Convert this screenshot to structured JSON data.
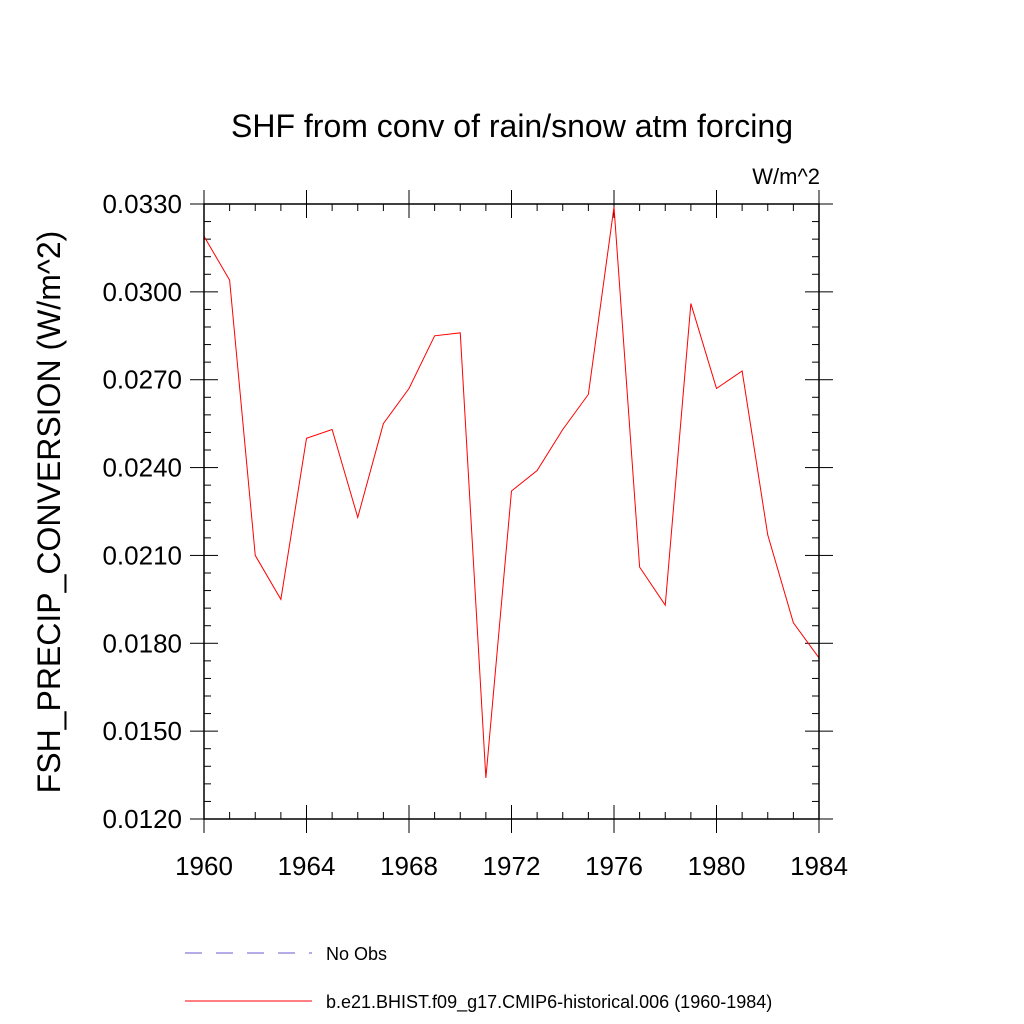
{
  "chart_data": {
    "type": "line",
    "title": "SHF from conv of rain/snow atm forcing",
    "units_label": "W/m^2",
    "ylabel": "FSH_PRECIP_CONVERSION  (W/m^2)",
    "xlabel": "",
    "xlim": [
      1960,
      1984
    ],
    "ylim": [
      0.012,
      0.033
    ],
    "x_ticks": [
      "1960",
      "1964",
      "1968",
      "1972",
      "1976",
      "1980",
      "1984"
    ],
    "y_ticks": [
      "0.0120",
      "0.0150",
      "0.0180",
      "0.0210",
      "0.0240",
      "0.0270",
      "0.0300",
      "0.0330"
    ],
    "grid": false,
    "legend_position": "bottom",
    "series": [
      {
        "name": "No Obs",
        "color": "#6a5acd",
        "dash": "dashed",
        "x": [],
        "values": []
      },
      {
        "name": "b.e21.BHIST.f09_g17.CMIP6-historical.006 (1960-1984)",
        "color": "#ff0000",
        "dash": "solid",
        "x": [
          1960,
          1961,
          1962,
          1963,
          1964,
          1965,
          1966,
          1967,
          1968,
          1969,
          1970,
          1971,
          1972,
          1973,
          1974,
          1975,
          1976,
          1977,
          1978,
          1979,
          1980,
          1981,
          1982,
          1983,
          1984
        ],
        "values": [
          0.0319,
          0.0304,
          0.021,
          0.0195,
          0.025,
          0.0253,
          0.0223,
          0.0255,
          0.0267,
          0.0285,
          0.0286,
          0.0134,
          0.0232,
          0.0239,
          0.0253,
          0.0265,
          0.0329,
          0.0206,
          0.0193,
          0.0296,
          0.0267,
          0.0273,
          0.0217,
          0.0187,
          0.0175
        ]
      }
    ]
  }
}
